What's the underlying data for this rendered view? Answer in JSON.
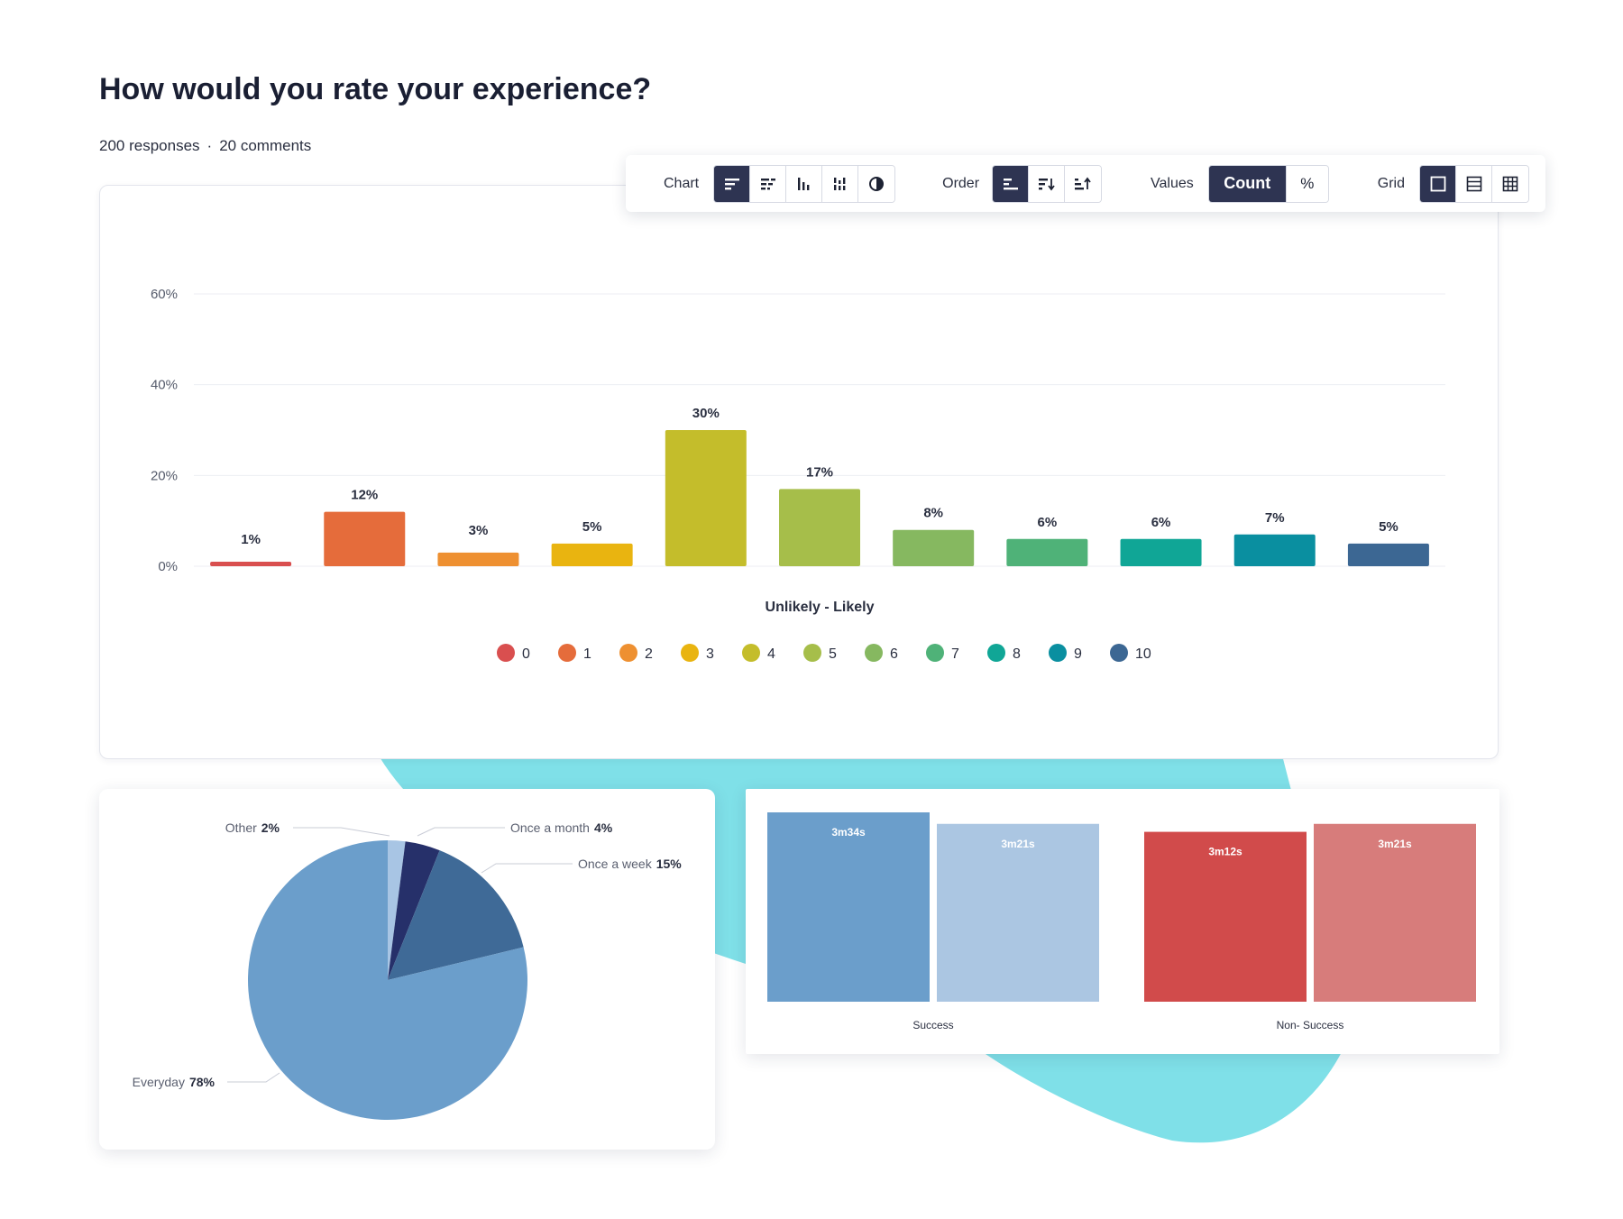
{
  "page": {
    "title": "How would you rate your experience?",
    "responses": "200 responses",
    "comments": "20 comments"
  },
  "toolbar": {
    "chart_label": "Chart",
    "order_label": "Order",
    "values_label": "Values",
    "count_label": "Count",
    "percent_label": "%",
    "grid_label": "Grid",
    "chart_icons": [
      "bar-horizontal-icon",
      "bar-stacked-horizontal-icon",
      "bar-vertical-icon",
      "bar-stacked-vertical-icon",
      "pie-icon"
    ],
    "order_icons": [
      "order-default-icon",
      "sort-descending-icon",
      "sort-ascending-icon"
    ],
    "grid_icons": [
      "grid-single-icon",
      "grid-rows-icon",
      "grid-table-icon"
    ]
  },
  "chart_data": [
    {
      "type": "bar",
      "xlabel": "Unlikely  -  Likely",
      "ylabel": "",
      "ylim": [
        0,
        60
      ],
      "yticks": [
        "0%",
        "20%",
        "40%",
        "60%"
      ],
      "grid": true,
      "legend_position": "bottom",
      "categories": [
        "0",
        "1",
        "2",
        "3",
        "4",
        "5",
        "6",
        "7",
        "8",
        "9",
        "10"
      ],
      "values": [
        1,
        12,
        3,
        5,
        30,
        17,
        8,
        6,
        6,
        7,
        5
      ],
      "labels": [
        "1%",
        "12%",
        "3%",
        "5%",
        "30%",
        "17%",
        "8%",
        "6%",
        "6%",
        "7%",
        "5%"
      ],
      "colors": [
        "#d94f4f",
        "#e56c3b",
        "#ee9031",
        "#e9b410",
        "#c4bd2b",
        "#a6be4a",
        "#86b860",
        "#4fb278",
        "#10a696",
        "#0a8fa0",
        "#3c6793"
      ]
    },
    {
      "type": "pie",
      "slices": [
        {
          "name": "Everyday",
          "label": "78%",
          "value": 78,
          "color": "#6b9ecb"
        },
        {
          "name": "Other",
          "label": "2%",
          "value": 2,
          "color": "#a8c5e4"
        },
        {
          "name": "Once a month",
          "label": "4%",
          "value": 4,
          "color": "#26306a"
        },
        {
          "name": "Once a week",
          "label": "15%",
          "value": 15,
          "color": "#3f6a97"
        }
      ]
    },
    {
      "type": "bar",
      "categories": [
        "Success",
        "Non- Success"
      ],
      "series": [
        {
          "category": "Success",
          "values": [
            214,
            201
          ],
          "labels": [
            "3m34s",
            "3m21s"
          ],
          "colors": [
            "#6b9ecb",
            "#abc6e2"
          ]
        },
        {
          "category": "Non- Success",
          "values": [
            192,
            201
          ],
          "labels": [
            "3m12s",
            "3m21s"
          ],
          "colors": [
            "#d14b4b",
            "#d77c7b"
          ]
        }
      ]
    }
  ]
}
